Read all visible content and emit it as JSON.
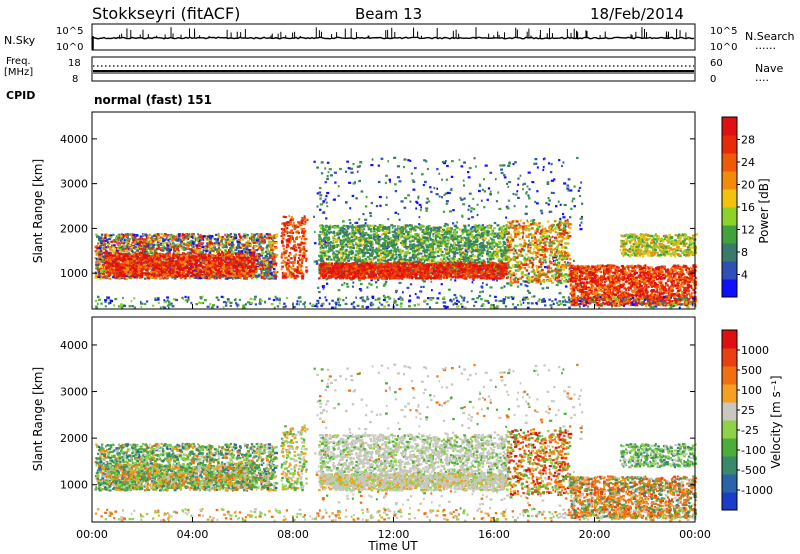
{
  "header": {
    "station": "Stokkseyri (fitACF)",
    "beam": "Beam 13",
    "date": "18/Feb/2014"
  },
  "side_labels": {
    "nsky": "N.Sky",
    "freq_line1": "Freq.",
    "freq_line2": "[MHz]",
    "cpid": "CPID",
    "nsearch": "N.Search",
    "nave": "Nave",
    "dotted_key": "......",
    "nave_key": "...."
  },
  "cpid_text": "normal (fast) 151",
  "nsky_ticks": [
    "10^5",
    "10^0"
  ],
  "nsearch_ticks": [
    "10^5",
    "10^0"
  ],
  "freq_ticks": [
    "18",
    "8"
  ],
  "nave_ticks": [
    "60",
    "0"
  ],
  "colors": {
    "power_scale": [
      "#1010ff",
      "#2e4fb8",
      "#3b7a6a",
      "#3fa23c",
      "#8cd12c",
      "#f2c20d",
      "#f28a0a",
      "#ee5a08",
      "#e82a08",
      "#e01010"
    ],
    "velocity_scale": [
      "#1b3cc8",
      "#2a63a8",
      "#3a8a6a",
      "#4cae3a",
      "#8fd24a",
      "#c8c8c0",
      "#f5a020",
      "#f07010",
      "#e84010",
      "#e01010"
    ]
  },
  "chart_data": [
    {
      "type": "heatmap",
      "panel": "power",
      "xlabel": "",
      "ylabel": "Slant Range [km]",
      "ylim": [
        200,
        4600
      ],
      "xlim_hours": [
        0,
        24
      ],
      "y_ticks": [
        "1000",
        "2000",
        "3000",
        "4000"
      ],
      "colorbar_label": "Power [dB]",
      "colorbar_ticks": [
        "4",
        "8",
        "12",
        "16",
        "20",
        "24",
        "28"
      ],
      "colorbar_range": [
        0,
        32
      ]
    },
    {
      "type": "heatmap",
      "panel": "velocity",
      "xlabel": "Time UT",
      "ylabel": "Slant Range [km]",
      "ylim": [
        200,
        4600
      ],
      "xlim_hours": [
        0,
        24
      ],
      "y_ticks": [
        "1000",
        "2000",
        "3000",
        "4000"
      ],
      "x_ticks": [
        "00:00",
        "04:00",
        "08:00",
        "12:00",
        "16:00",
        "20:00",
        "00:00"
      ],
      "colorbar_label": "Velocity [m s⁻¹]",
      "colorbar_ticks": [
        "1000",
        "500",
        "100",
        "25",
        "-25",
        "-100",
        "-500",
        "-1000"
      ]
    }
  ]
}
